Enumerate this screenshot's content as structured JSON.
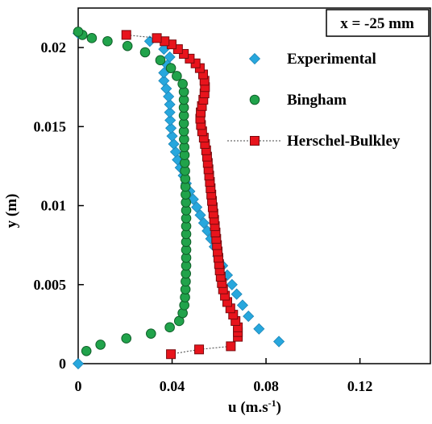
{
  "chart_data": {
    "type": "scatter",
    "annotation": "x = -25 mm",
    "xlabel": "u (m.s",
    "xlabel_sup": "-1",
    "xlabel_close": ")",
    "ylabel": "y (m)",
    "xlim": [
      0,
      0.15
    ],
    "ylim": [
      0,
      0.0225
    ],
    "xticks": [
      0,
      0.04,
      0.08,
      0.12
    ],
    "xtick_labels": [
      "0",
      "0.04",
      "0.08",
      "0.12"
    ],
    "yticks": [
      0,
      0.005,
      0.01,
      0.015,
      0.02
    ],
    "ytick_labels": [
      "0",
      "0.005",
      "0.01",
      "0.015",
      "0.02"
    ],
    "grid": false,
    "legend_position": "top-right",
    "colors": {
      "experimental": "#27a7dd",
      "bingham": "#21a34b",
      "herschel": "#e8141c"
    },
    "series": [
      {
        "name": "Experimental",
        "marker": "diamond",
        "line": false,
        "points": [
          [
            0.0,
            0.0
          ],
          [
            0.0855,
            0.0014
          ],
          [
            0.077,
            0.0022
          ],
          [
            0.0725,
            0.003
          ],
          [
            0.07,
            0.0037
          ],
          [
            0.0675,
            0.0044
          ],
          [
            0.0655,
            0.005
          ],
          [
            0.0635,
            0.0056
          ],
          [
            0.0615,
            0.0062
          ],
          [
            0.0595,
            0.0068
          ],
          [
            0.058,
            0.0074
          ],
          [
            0.0565,
            0.0079
          ],
          [
            0.055,
            0.0084
          ],
          [
            0.0535,
            0.0089
          ],
          [
            0.052,
            0.0094
          ],
          [
            0.0505,
            0.0099
          ],
          [
            0.049,
            0.0104
          ],
          [
            0.0475,
            0.0109
          ],
          [
            0.046,
            0.0114
          ],
          [
            0.0448,
            0.0119
          ],
          [
            0.0435,
            0.0124
          ],
          [
            0.0423,
            0.0129
          ],
          [
            0.0415,
            0.0134
          ],
          [
            0.0407,
            0.0139
          ],
          [
            0.04,
            0.0144
          ],
          [
            0.0395,
            0.0149
          ],
          [
            0.0392,
            0.0154
          ],
          [
            0.039,
            0.0159
          ],
          [
            0.039,
            0.0164
          ],
          [
            0.0385,
            0.0169
          ],
          [
            0.0375,
            0.0174
          ],
          [
            0.0365,
            0.0179
          ],
          [
            0.0365,
            0.0184
          ],
          [
            0.038,
            0.0189
          ],
          [
            0.039,
            0.0194
          ],
          [
            0.0365,
            0.0199
          ],
          [
            0.0305,
            0.0204
          ],
          [
            0.0,
            0.0209
          ]
        ]
      },
      {
        "name": "Bingham",
        "marker": "circle",
        "line": false,
        "points": [
          [
            0.0035,
            0.0008
          ],
          [
            0.0095,
            0.0012
          ],
          [
            0.0205,
            0.0016
          ],
          [
            0.031,
            0.0019
          ],
          [
            0.039,
            0.0023
          ],
          [
            0.043,
            0.0027
          ],
          [
            0.0445,
            0.0032
          ],
          [
            0.0452,
            0.0037
          ],
          [
            0.0455,
            0.0042
          ],
          [
            0.0457,
            0.0047
          ],
          [
            0.0458,
            0.0052
          ],
          [
            0.0459,
            0.0057
          ],
          [
            0.046,
            0.0062
          ],
          [
            0.046,
            0.0067
          ],
          [
            0.046,
            0.0072
          ],
          [
            0.046,
            0.0077
          ],
          [
            0.046,
            0.0082
          ],
          [
            0.046,
            0.0087
          ],
          [
            0.046,
            0.0092
          ],
          [
            0.046,
            0.0097
          ],
          [
            0.0459,
            0.0102
          ],
          [
            0.0458,
            0.0107
          ],
          [
            0.0457,
            0.0112
          ],
          [
            0.0456,
            0.0117
          ],
          [
            0.0455,
            0.0122
          ],
          [
            0.0454,
            0.0127
          ],
          [
            0.0453,
            0.0132
          ],
          [
            0.0452,
            0.0137
          ],
          [
            0.0451,
            0.0142
          ],
          [
            0.045,
            0.0147
          ],
          [
            0.045,
            0.0152
          ],
          [
            0.045,
            0.0157
          ],
          [
            0.045,
            0.0162
          ],
          [
            0.045,
            0.0167
          ],
          [
            0.045,
            0.0172
          ],
          [
            0.0445,
            0.0177
          ],
          [
            0.042,
            0.0182
          ],
          [
            0.0395,
            0.0187
          ],
          [
            0.035,
            0.0192
          ],
          [
            0.0285,
            0.0197
          ],
          [
            0.021,
            0.0201
          ],
          [
            0.0125,
            0.0204
          ],
          [
            0.0058,
            0.0206
          ],
          [
            0.0018,
            0.0208
          ],
          [
            0.0,
            0.021
          ]
        ]
      },
      {
        "name": "Herschel-Bulkley",
        "marker": "square",
        "line": true,
        "points": [
          [
            0.0395,
            0.0006
          ],
          [
            0.0515,
            0.0009
          ],
          [
            0.065,
            0.0011
          ],
          [
            0.068,
            0.0017
          ],
          [
            0.068,
            0.002
          ],
          [
            0.068,
            0.0023
          ],
          [
            0.067,
            0.0027
          ],
          [
            0.066,
            0.0031
          ],
          [
            0.0648,
            0.0035
          ],
          [
            0.0635,
            0.0039
          ],
          [
            0.0625,
            0.0043
          ],
          [
            0.0617,
            0.0047
          ],
          [
            0.0612,
            0.0051
          ],
          [
            0.0607,
            0.0055
          ],
          [
            0.0603,
            0.0059
          ],
          [
            0.06,
            0.0063
          ],
          [
            0.0597,
            0.0067
          ],
          [
            0.0594,
            0.0071
          ],
          [
            0.0591,
            0.0075
          ],
          [
            0.0588,
            0.0079
          ],
          [
            0.0585,
            0.0083
          ],
          [
            0.0582,
            0.0087
          ],
          [
            0.0579,
            0.0091
          ],
          [
            0.0576,
            0.0095
          ],
          [
            0.0573,
            0.0099
          ],
          [
            0.057,
            0.0103
          ],
          [
            0.0567,
            0.0107
          ],
          [
            0.0564,
            0.0111
          ],
          [
            0.0561,
            0.0115
          ],
          [
            0.0558,
            0.0119
          ],
          [
            0.0555,
            0.0123
          ],
          [
            0.0552,
            0.0127
          ],
          [
            0.0549,
            0.0131
          ],
          [
            0.0545,
            0.0135
          ],
          [
            0.054,
            0.0139
          ],
          [
            0.0535,
            0.0143
          ],
          [
            0.0528,
            0.0147
          ],
          [
            0.0523,
            0.0151
          ],
          [
            0.052,
            0.0155
          ],
          [
            0.0522,
            0.0159
          ],
          [
            0.0527,
            0.0163
          ],
          [
            0.0533,
            0.0167
          ],
          [
            0.0538,
            0.0171
          ],
          [
            0.054,
            0.0175
          ],
          [
            0.0538,
            0.0179
          ],
          [
            0.0532,
            0.0183
          ],
          [
            0.0518,
            0.0187
          ],
          [
            0.05,
            0.019
          ],
          [
            0.0475,
            0.0193
          ],
          [
            0.045,
            0.0196
          ],
          [
            0.0425,
            0.0199
          ],
          [
            0.0398,
            0.0202
          ],
          [
            0.0368,
            0.0204
          ],
          [
            0.0335,
            0.0206
          ],
          [
            0.0205,
            0.0208
          ]
        ]
      }
    ]
  }
}
